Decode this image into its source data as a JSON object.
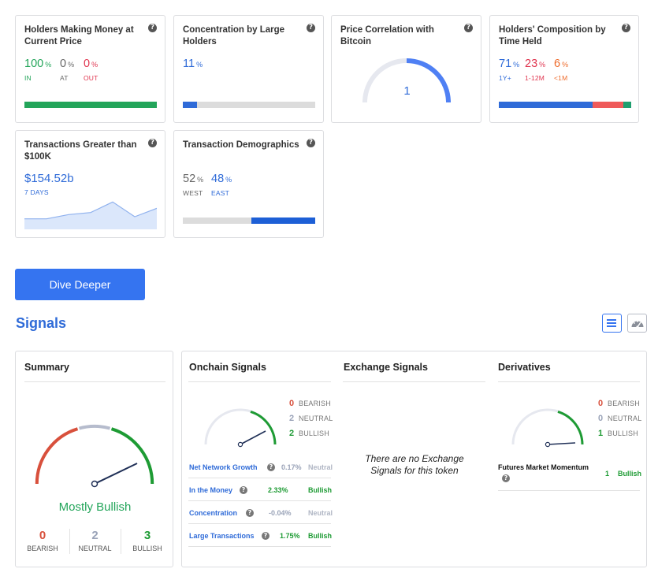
{
  "cards": {
    "holders_money": {
      "title": "Holders Making Money at Current Price",
      "in": {
        "value": "100",
        "unit": "%",
        "label": "IN"
      },
      "at": {
        "value": "0",
        "unit": "%",
        "label": "AT"
      },
      "out": {
        "value": "0",
        "unit": "%",
        "label": "OUT"
      },
      "bar_fraction": 1.0
    },
    "concentration": {
      "title": "Concentration by Large Holders",
      "value": "11",
      "unit": "%",
      "bar_fraction": 0.11
    },
    "price_correlation": {
      "title": "Price Correlation with Bitcoin",
      "value": "1",
      "gauge_fraction": 1.0
    },
    "composition": {
      "title": "Holders' Composition by Time Held",
      "long": {
        "value": "71",
        "unit": "%",
        "label": "1Y+"
      },
      "mid": {
        "value": "23",
        "unit": "%",
        "label": "1-12M"
      },
      "short": {
        "value": "6",
        "unit": "%",
        "label": "<1M"
      }
    },
    "transactions": {
      "title": "Transactions Greater than $100K",
      "value": "$154.52b",
      "period": "7 DAYS",
      "sparkline": [
        10,
        10,
        14,
        16,
        26,
        12,
        20
      ]
    },
    "demographics": {
      "title": "Transaction Demographics",
      "west": {
        "value": "52",
        "unit": "%",
        "label": "WEST"
      },
      "east": {
        "value": "48",
        "unit": "%",
        "label": "EAST"
      }
    }
  },
  "dive_deeper": "Dive Deeper",
  "signals": {
    "title": "Signals",
    "summary": {
      "title": "Summary",
      "verdict": "Mostly Bullish",
      "bearish": {
        "count": "0",
        "label": "BEARISH"
      },
      "neutral": {
        "count": "2",
        "label": "NEUTRAL"
      },
      "bullish": {
        "count": "3",
        "label": "BULLISH"
      }
    },
    "onchain": {
      "title": "Onchain Signals",
      "bearish": {
        "count": "0",
        "label": "BEARISH"
      },
      "neutral": {
        "count": "2",
        "label": "NEUTRAL"
      },
      "bullish": {
        "count": "2",
        "label": "BULLISH"
      },
      "rows": [
        {
          "name": "Net Network Growth",
          "value": "0.17%",
          "status": "Neutral"
        },
        {
          "name": "In the Money",
          "value": "2.33%",
          "status": "Bullish"
        },
        {
          "name": "Concentration",
          "value": "-0.04%",
          "status": "Neutral"
        },
        {
          "name": "Large Transactions",
          "value": "1.75%",
          "status": "Bullish"
        }
      ]
    },
    "exchange": {
      "title": "Exchange Signals",
      "empty": "There are no Exchange Signals for this token"
    },
    "derivatives": {
      "title": "Derivatives",
      "bearish": {
        "count": "0",
        "label": "BEARISH"
      },
      "neutral": {
        "count": "0",
        "label": "NEUTRAL"
      },
      "bullish": {
        "count": "1",
        "label": "BULLISH"
      },
      "row": {
        "name": "Futures Market Momentum",
        "value": "1",
        "status": "Bullish"
      }
    }
  },
  "help_glyph": "?",
  "colors": {
    "green": "#23a55a",
    "red": "#e0344e",
    "blue": "#2f6bd8",
    "accent": "#3574f0",
    "gauge_blue": "#4f80f4",
    "gauge_bg": "#e6e8ef",
    "bullish_arc": "#1e9b34",
    "bearish_arc": "#d8503c",
    "neutral_arc": "#b6bccd",
    "needle": "#1f2f56"
  }
}
